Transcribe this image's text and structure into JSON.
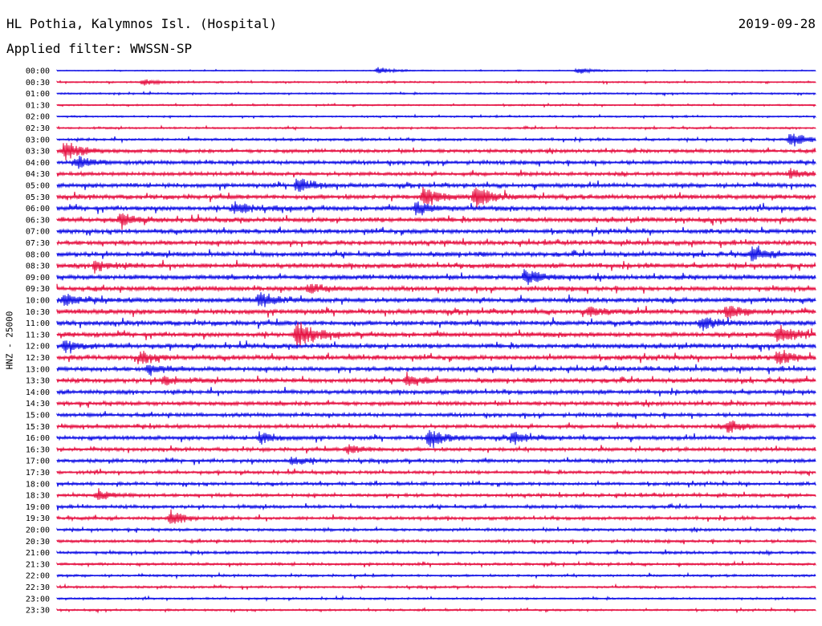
{
  "header": {
    "station": "HL Pothia, Kalymnos Isl. (Hospital)",
    "date": "2019-09-28",
    "filter": "Applied filter: WWSSN-SP",
    "channel_label": "HNZ - 25000"
  },
  "colors": {
    "even_trace": "#1515e6",
    "odd_trace": "#e61545",
    "background": "#ffffff"
  },
  "chart_data": {
    "type": "line",
    "title": "HL Pothia, Kalymnos Isl. (Hospital)",
    "subtitle": "Applied filter: WWSSN-SP",
    "ylabel": "HNZ - 25000",
    "rows": [
      "00:00",
      "00:30",
      "01:00",
      "01:30",
      "02:00",
      "02:30",
      "03:00",
      "03:30",
      "04:00",
      "04:30",
      "05:00",
      "05:30",
      "06:00",
      "06:30",
      "07:00",
      "07:30",
      "08:00",
      "08:30",
      "09:00",
      "09:30",
      "10:00",
      "10:30",
      "11:00",
      "11:30",
      "12:00",
      "12:30",
      "13:00",
      "13:30",
      "14:00",
      "14:30",
      "15:00",
      "15:30",
      "16:00",
      "16:30",
      "17:00",
      "17:30",
      "18:00",
      "18:30",
      "19:00",
      "19:30",
      "20:00",
      "20:30",
      "21:00",
      "21:30",
      "22:00",
      "22:30",
      "23:00",
      "23:30"
    ],
    "row_minutes": 30,
    "noise_level": [
      0.6,
      1.0,
      1.0,
      1.0,
      1.0,
      1.2,
      1.6,
      2.2,
      2.4,
      2.4,
      2.6,
      2.8,
      3.0,
      3.0,
      2.8,
      2.8,
      3.0,
      3.0,
      3.0,
      3.0,
      3.2,
      3.0,
      3.0,
      3.0,
      3.0,
      3.0,
      2.8,
      2.8,
      2.6,
      2.6,
      2.4,
      2.4,
      2.4,
      2.2,
      2.2,
      2.0,
      2.0,
      2.0,
      2.0,
      2.0,
      1.8,
      1.8,
      1.8,
      1.6,
      1.4,
      1.4,
      1.2,
      1.2
    ],
    "events": [
      {
        "row": "00:00",
        "minute": 12.7,
        "amplitude": 4
      },
      {
        "row": "00:00",
        "minute": 20.6,
        "amplitude": 4
      },
      {
        "row": "00:30",
        "minute": 3.4,
        "amplitude": 4
      },
      {
        "row": "03:00",
        "minute": 29.0,
        "amplitude": 10
      },
      {
        "row": "03:30",
        "minute": 0.3,
        "amplitude": 14
      },
      {
        "row": "04:00",
        "minute": 0.8,
        "amplitude": 8
      },
      {
        "row": "04:30",
        "minute": 29.0,
        "amplitude": 5
      },
      {
        "row": "05:00",
        "minute": 9.5,
        "amplitude": 10
      },
      {
        "row": "05:30",
        "minute": 14.5,
        "amplitude": 12
      },
      {
        "row": "05:30",
        "minute": 16.5,
        "amplitude": 8
      },
      {
        "row": "05:30",
        "minute": 16.6,
        "amplitude": 7
      },
      {
        "row": "06:00",
        "minute": 7.0,
        "amplitude": 8
      },
      {
        "row": "06:00",
        "minute": 14.2,
        "amplitude": 9
      },
      {
        "row": "06:30",
        "minute": 2.5,
        "amplitude": 8
      },
      {
        "row": "08:00",
        "minute": 27.5,
        "amplitude": 8
      },
      {
        "row": "08:30",
        "minute": 1.5,
        "amplitude": 8
      },
      {
        "row": "09:00",
        "minute": 18.5,
        "amplitude": 10
      },
      {
        "row": "09:30",
        "minute": 10.0,
        "amplitude": 6
      },
      {
        "row": "10:00",
        "minute": 0.3,
        "amplitude": 7
      },
      {
        "row": "10:00",
        "minute": 8.0,
        "amplitude": 10
      },
      {
        "row": "10:30",
        "minute": 21.0,
        "amplitude": 6
      },
      {
        "row": "10:30",
        "minute": 26.5,
        "amplitude": 8
      },
      {
        "row": "11:00",
        "minute": 25.5,
        "amplitude": 8
      },
      {
        "row": "11:30",
        "minute": 9.5,
        "amplitude": 18
      },
      {
        "row": "11:30",
        "minute": 28.5,
        "amplitude": 13
      },
      {
        "row": "12:00",
        "minute": 0.3,
        "amplitude": 7
      },
      {
        "row": "12:30",
        "minute": 3.3,
        "amplitude": 8
      },
      {
        "row": "12:30",
        "minute": 28.5,
        "amplitude": 9
      },
      {
        "row": "13:00",
        "minute": 3.6,
        "amplitude": 6
      },
      {
        "row": "13:30",
        "minute": 4.2,
        "amplitude": 6
      },
      {
        "row": "13:30",
        "minute": 13.8,
        "amplitude": 8
      },
      {
        "row": "15:30",
        "minute": 26.5,
        "amplitude": 9
      },
      {
        "row": "16:00",
        "minute": 8.0,
        "amplitude": 7
      },
      {
        "row": "16:00",
        "minute": 14.7,
        "amplitude": 13
      },
      {
        "row": "16:00",
        "minute": 18.0,
        "amplitude": 8
      },
      {
        "row": "16:30",
        "minute": 11.5,
        "amplitude": 6
      },
      {
        "row": "17:00",
        "minute": 9.3,
        "amplitude": 6
      },
      {
        "row": "18:30",
        "minute": 1.6,
        "amplitude": 6
      },
      {
        "row": "19:30",
        "minute": 4.5,
        "amplitude": 9
      }
    ]
  }
}
